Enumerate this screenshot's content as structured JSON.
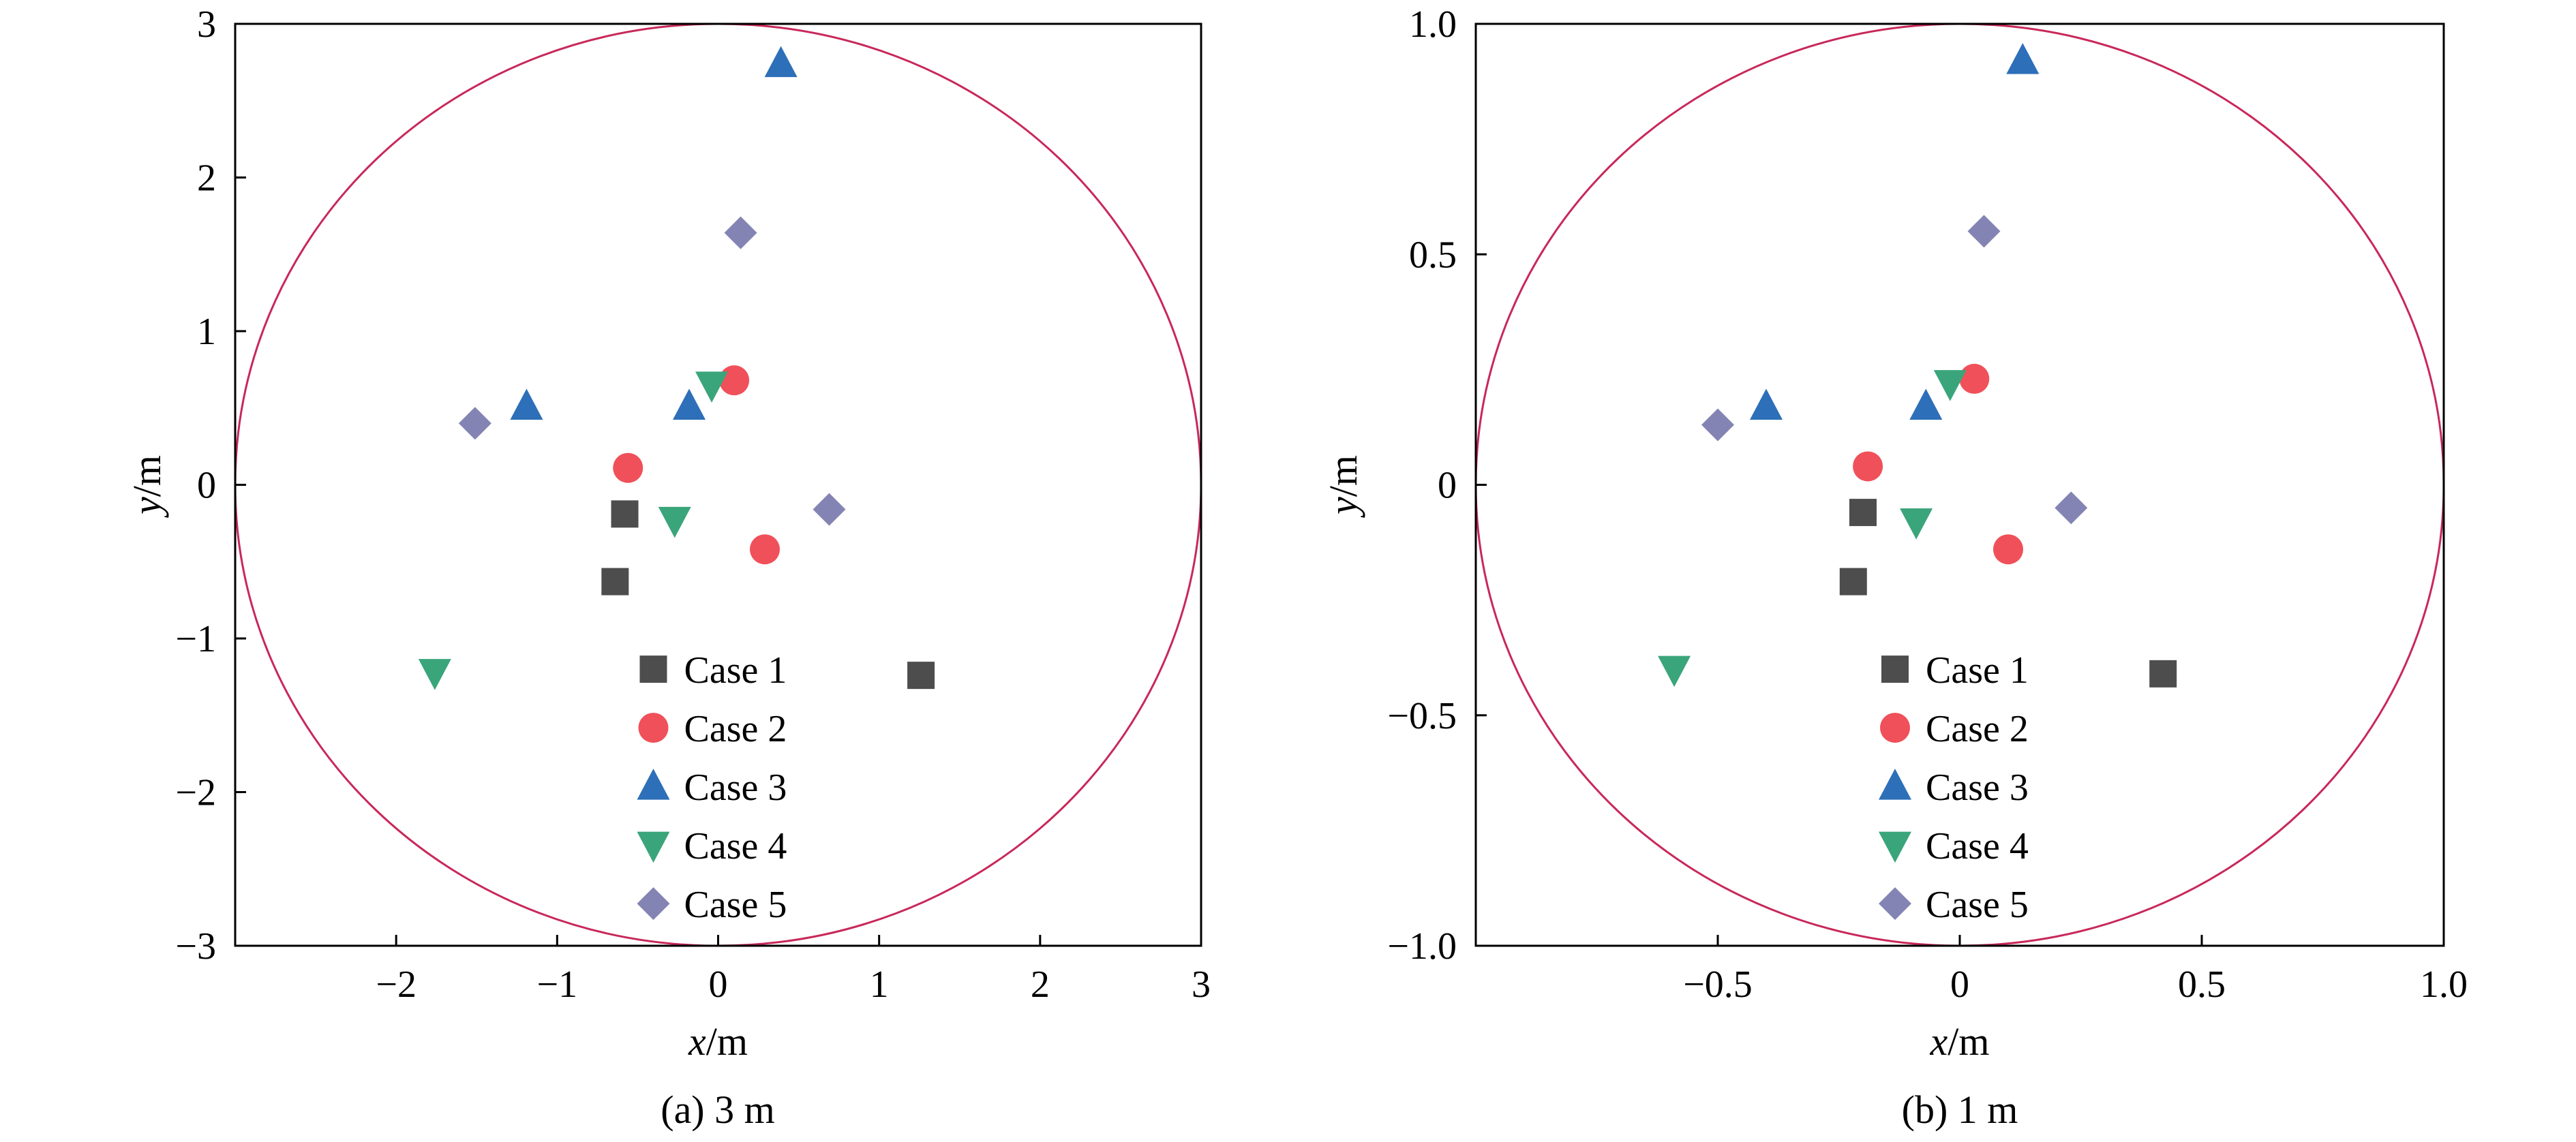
{
  "chart_data": [
    {
      "type": "scatter",
      "caption": "(a) 3 m",
      "xlabel_var": "x",
      "xlabel_unit": "/m",
      "ylabel_var": "y",
      "ylabel_unit": "/m",
      "xlim": [
        -3,
        3
      ],
      "ylim": [
        -3,
        3
      ],
      "xticks": [
        -2,
        -1,
        0,
        1,
        2,
        3
      ],
      "xtick_labels": [
        "−2",
        "−1",
        "0",
        "1",
        "2",
        "3"
      ],
      "yticks": [
        -3,
        -2,
        -1,
        0,
        1,
        2,
        3
      ],
      "ytick_labels": [
        "−3",
        "−2",
        "−1",
        "0",
        "1",
        "2",
        "3"
      ],
      "circle_radius": 3,
      "legend_position": "bottom-center",
      "series": [
        {
          "name": "Case 1",
          "marker": "square",
          "color": "#4d4d4d",
          "x": [
            -0.58,
            -0.64,
            1.26
          ],
          "y": [
            -0.19,
            -0.63,
            -1.24
          ]
        },
        {
          "name": "Case 2",
          "marker": "circle",
          "color": "#f0505a",
          "x": [
            -0.56,
            0.1,
            0.29
          ],
          "y": [
            0.11,
            0.68,
            -0.42
          ]
        },
        {
          "name": "Case 3",
          "marker": "triangle-up",
          "color": "#2d6fb8",
          "x": [
            0.39,
            -1.19,
            -0.18
          ],
          "y": [
            2.74,
            0.51,
            0.51
          ]
        },
        {
          "name": "Case 4",
          "marker": "triangle-down",
          "color": "#3aa57a",
          "x": [
            -0.04,
            -0.27,
            -1.76
          ],
          "y": [
            0.65,
            -0.23,
            -1.22
          ]
        },
        {
          "name": "Case 5",
          "marker": "diamond",
          "color": "#8484b4",
          "x": [
            0.14,
            -1.51,
            0.69
          ],
          "y": [
            1.64,
            0.4,
            -0.16
          ]
        }
      ]
    },
    {
      "type": "scatter",
      "caption": "(b) 1 m",
      "xlabel_var": "x",
      "xlabel_unit": "/m",
      "ylabel_var": "y",
      "ylabel_unit": "/m",
      "xlim": [
        -1,
        1
      ],
      "ylim": [
        -1,
        1
      ],
      "xticks": [
        -0.5,
        0,
        0.5,
        1.0
      ],
      "xtick_labels": [
        "−0.5",
        "0",
        "0.5",
        "1.0"
      ],
      "yticks": [
        -1.0,
        -0.5,
        0,
        0.5,
        1.0
      ],
      "ytick_labels": [
        "−1.0",
        "−0.5",
        "0",
        "0.5",
        "1.0"
      ],
      "circle_radius": 1,
      "legend_position": "bottom-center",
      "series": [
        {
          "name": "Case 1",
          "marker": "square",
          "color": "#4d4d4d",
          "x": [
            -0.2,
            -0.22,
            0.42
          ],
          "y": [
            -0.06,
            -0.21,
            -0.41
          ]
        },
        {
          "name": "Case 2",
          "marker": "circle",
          "color": "#f0505a",
          "x": [
            -0.19,
            0.03,
            0.1
          ],
          "y": [
            0.04,
            0.23,
            -0.14
          ]
        },
        {
          "name": "Case 3",
          "marker": "triangle-up",
          "color": "#2d6fb8",
          "x": [
            0.13,
            -0.4,
            -0.07
          ],
          "y": [
            0.92,
            0.17,
            0.17
          ]
        },
        {
          "name": "Case 4",
          "marker": "triangle-down",
          "color": "#3aa57a",
          "x": [
            -0.02,
            -0.09,
            -0.59
          ],
          "y": [
            0.22,
            -0.08,
            -0.4
          ]
        },
        {
          "name": "Case 5",
          "marker": "diamond",
          "color": "#8484b4",
          "x": [
            0.05,
            -0.5,
            0.23
          ],
          "y": [
            0.55,
            0.13,
            -0.05
          ]
        }
      ]
    }
  ],
  "colors": {
    "circle": "#c8285a",
    "axis": "#000000"
  }
}
